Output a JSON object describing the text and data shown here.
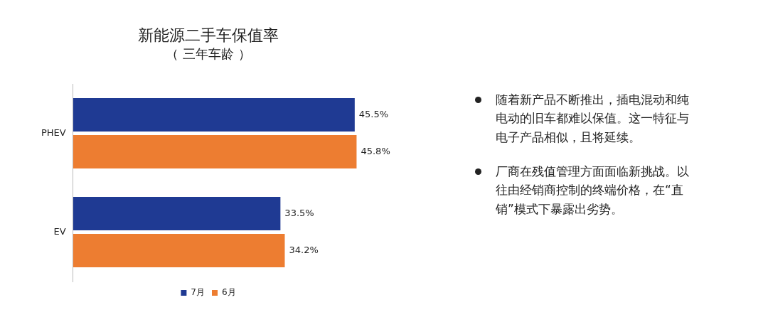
{
  "chart_data": {
    "type": "bar",
    "orientation": "horizontal",
    "title": "新能源二手车保值率",
    "subtitle": "（ 三年车龄 ）",
    "categories": [
      "PHEV",
      "EV"
    ],
    "series": [
      {
        "name": "7月",
        "color": "#1f3a93",
        "values": [
          45.5,
          33.5
        ],
        "value_labels": [
          "45.5%",
          "33.5%"
        ]
      },
      {
        "name": "6月",
        "color": "#ed7d31",
        "values": [
          45.8,
          34.2
        ],
        "value_labels": [
          "45.8%",
          "34.2%"
        ]
      }
    ],
    "legend": "bottom",
    "annotations": [
      "随着新产品不断推出，插电混动和纯电动的旧车都难以保值。这一特征与电子产品相似，且将延续。",
      "厂商在残值管理方面面临新挑战。以往由经销商控制的终端价格，在“直销”模式下暴露出劣势。"
    ]
  }
}
